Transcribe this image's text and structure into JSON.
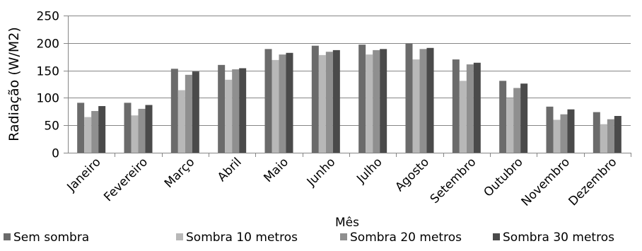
{
  "chart_data": {
    "type": "bar",
    "title": "",
    "xlabel": "Mês",
    "ylabel": "Radiação (W/M2)",
    "ylim": [
      0,
      250
    ],
    "yticks": [
      0,
      50,
      100,
      150,
      200,
      250
    ],
    "grid": true,
    "legend_position": "bottom",
    "categories": [
      "Janeiro",
      "Fevereiro",
      "Março",
      "Abril",
      "Maio",
      "Junho",
      "Julho",
      "Agosto",
      "Setembro",
      "Outubro",
      "Novembro",
      "Dezembro"
    ],
    "series": [
      {
        "name": "Sem sombra",
        "color": "#6b6b6b",
        "values": [
          91,
          91,
          153,
          160,
          189,
          195,
          197,
          199,
          170,
          131,
          84,
          74
        ]
      },
      {
        "name": "Sombra 10 metros",
        "color": "#b8b8b8",
        "values": [
          65,
          68,
          114,
          133,
          169,
          178,
          179,
          170,
          131,
          99,
          60,
          52
        ]
      },
      {
        "name": "Sombra 20 metros",
        "color": "#8f8f8f",
        "values": [
          76,
          80,
          142,
          152,
          179,
          184,
          187,
          189,
          161,
          118,
          70,
          61
        ]
      },
      {
        "name": "Sombra 30 metros",
        "color": "#4a4a4a",
        "values": [
          85,
          87,
          148,
          154,
          182,
          187,
          189,
          191,
          164,
          126,
          79,
          67
        ]
      }
    ]
  }
}
